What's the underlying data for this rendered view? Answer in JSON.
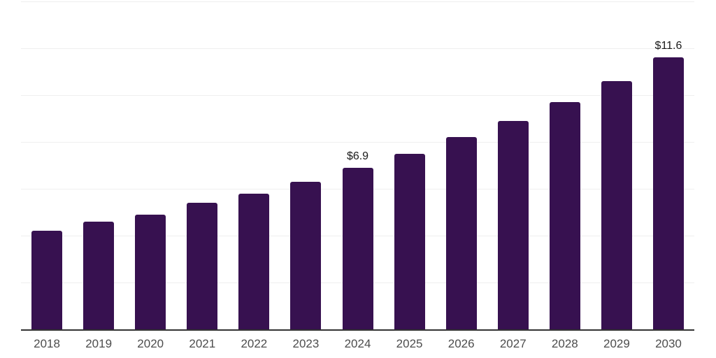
{
  "chart_data": {
    "type": "bar",
    "categories": [
      "2018",
      "2019",
      "2020",
      "2021",
      "2022",
      "2023",
      "2024",
      "2025",
      "2026",
      "2027",
      "2028",
      "2029",
      "2030"
    ],
    "values": [
      4.2,
      4.6,
      4.9,
      5.4,
      5.8,
      6.3,
      6.9,
      7.5,
      8.2,
      8.9,
      9.7,
      10.6,
      11.6
    ],
    "bar_labels": [
      "",
      "",
      "",
      "",
      "",
      "",
      "$6.9",
      "",
      "",
      "",
      "",
      "",
      "$11.6"
    ],
    "ylim": [
      0,
      14
    ],
    "grid_step": 2,
    "grid": true,
    "legend": false,
    "y_tick_labels_visible": false
  },
  "style": {
    "background": "#ffffff",
    "bar_color": "#371150",
    "grid_color": "#efefef",
    "axis_color": "#333333",
    "x_tick_color": "#4d4d4d",
    "data_label_color": "#1a1a1a"
  }
}
